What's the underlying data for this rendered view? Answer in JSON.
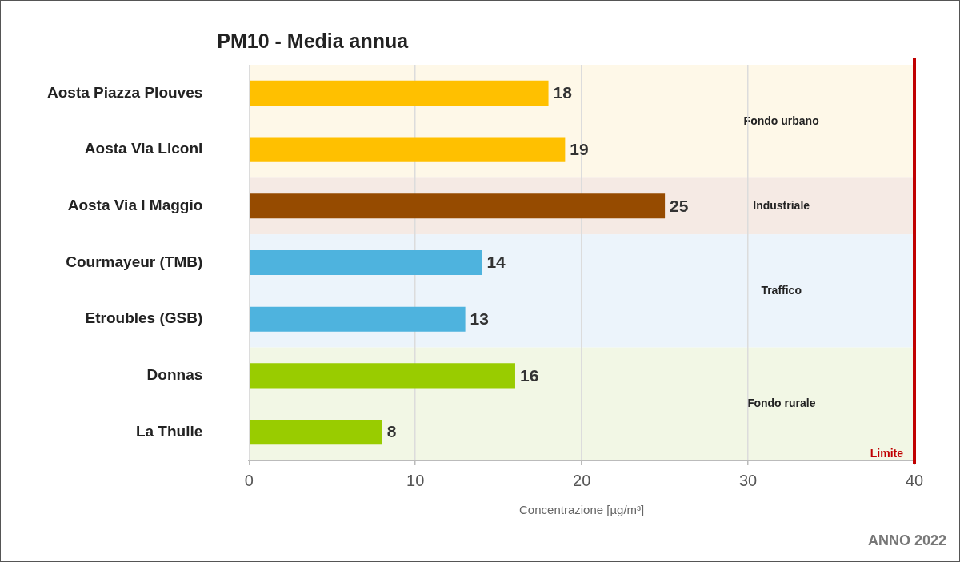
{
  "chart_data": {
    "type": "bar",
    "orientation": "horizontal",
    "title": "PM10 - Media annua",
    "x_label": "Concentrazione [µg/m³]",
    "footer": "ANNO 2022",
    "categories": [
      "Aosta Piazza Plouves",
      "Aosta Via Liconi",
      "Aosta Via I Maggio",
      "Courmayeur (TMB)",
      "Etroubles (GSB)",
      "Donnas",
      "La Thuile"
    ],
    "values": [
      18,
      19,
      25,
      14,
      13,
      16,
      8
    ],
    "colors": [
      "#ffc000",
      "#ffc000",
      "#964b00",
      "#4eb3de",
      "#4eb3de",
      "#99cc00",
      "#99cc00"
    ],
    "groups": [
      {
        "label": "Fondo urbano",
        "categories": [
          "Aosta Piazza Plouves",
          "Aosta Via Liconi"
        ],
        "color": "#fef8e8"
      },
      {
        "label": "Industriale",
        "categories": [
          "Aosta Via I Maggio"
        ],
        "color": "#f5eae4"
      },
      {
        "label": "Traffico",
        "categories": [
          "Courmayeur (TMB)",
          "Etroubles (GSB)"
        ],
        "color": "#ecf4fb"
      },
      {
        "label": "Fondo rurale",
        "categories": [
          "Donnas",
          "La Thuile"
        ],
        "color": "#f2f7e5"
      }
    ],
    "limit": {
      "value": 40,
      "label": "Limite",
      "color": "#c00000"
    },
    "xlim": [
      0,
      40
    ],
    "xticks": [
      0,
      10,
      20,
      30,
      40
    ],
    "grid": true,
    "data_labels": true
  }
}
